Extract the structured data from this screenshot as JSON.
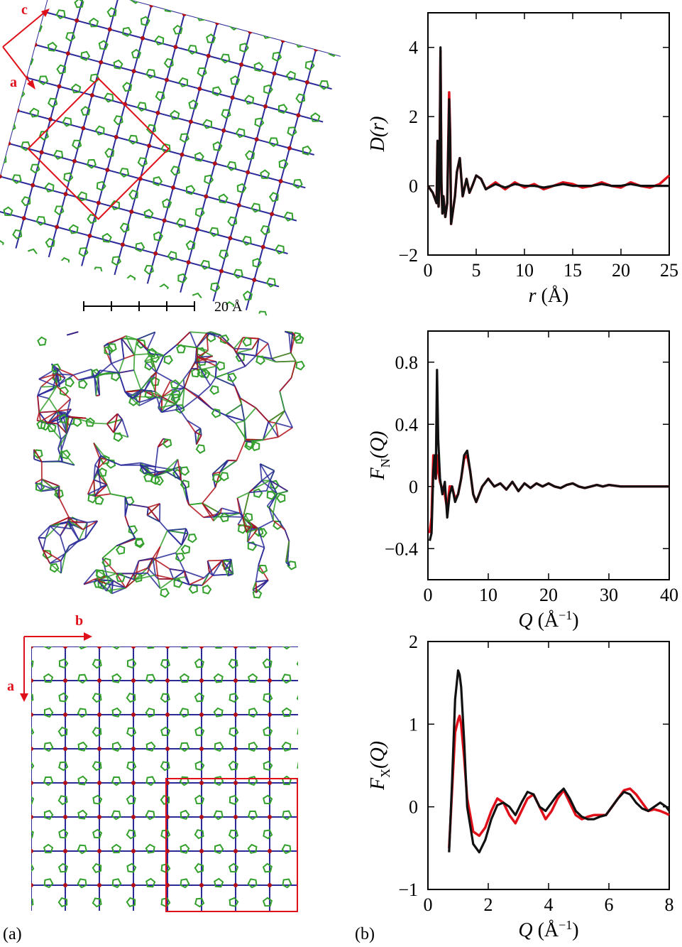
{
  "panel_labels": {
    "a": "(a)",
    "b": "(b)"
  },
  "structures": {
    "top": {
      "axis_labels": [
        "c",
        "a"
      ],
      "scale_bar_label": "20 Å"
    },
    "bottom": {
      "axis_labels": [
        "b",
        "a"
      ]
    }
  },
  "colors": {
    "experiment": "#e0101a",
    "model": "#111111",
    "bond_green": "#33a02c",
    "bond_blue": "#2a2a9a",
    "bond_red": "#b0101a"
  },
  "chart_data": [
    {
      "type": "line",
      "ylabel_main": "D(r)",
      "xlabel_main": "r (Å)",
      "xlim": [
        0,
        25
      ],
      "ylim": [
        -2,
        5
      ],
      "xticks": [
        0,
        5,
        10,
        15,
        20,
        25
      ],
      "yticks": [
        -2,
        0,
        2,
        4
      ],
      "xtick_labels": [
        "0",
        "5",
        "10",
        "15",
        "20",
        "25"
      ],
      "ytick_labels": [
        "−2",
        "0",
        "2",
        "4"
      ],
      "series": [
        {
          "color": "#e0101a",
          "x": [
            0,
            0.5,
            0.9,
            1.0,
            1.1,
            1.2,
            1.3,
            1.4,
            1.5,
            1.6,
            1.8,
            2.0,
            2.2,
            2.3,
            2.4,
            2.6,
            2.8,
            3.0,
            3.3,
            3.6,
            4.0,
            4.3,
            4.6,
            5.0,
            5.5,
            6.0,
            7.0,
            8.0,
            9.0,
            10.0,
            11.0,
            12.0,
            13.0,
            14.0,
            15.0,
            16.0,
            17.0,
            18.0,
            19.0,
            20.0,
            21.0,
            22.0,
            23.0,
            24.0,
            25.0
          ],
          "y": [
            0,
            -0.2,
            -0.5,
            1.3,
            -0.6,
            0.2,
            3.9,
            0.1,
            -0.8,
            -0.3,
            -0.9,
            -0.5,
            2.7,
            1.5,
            -1.1,
            -0.7,
            -0.3,
            0.4,
            0.8,
            -0.3,
            0.2,
            -0.2,
            0.0,
            0.3,
            0.2,
            -0.1,
            0.1,
            -0.1,
            0.1,
            -0.05,
            0.05,
            -0.1,
            0.0,
            0.1,
            0.05,
            -0.05,
            0.0,
            0.1,
            0.0,
            -0.05,
            0.1,
            0.0,
            -0.05,
            0.05,
            0.3
          ]
        },
        {
          "color": "#111111",
          "x": [
            0,
            0.5,
            0.9,
            1.0,
            1.1,
            1.2,
            1.3,
            1.4,
            1.5,
            1.6,
            1.8,
            2.0,
            2.2,
            2.3,
            2.4,
            2.6,
            2.8,
            3.0,
            3.3,
            3.6,
            4.0,
            4.3,
            4.6,
            5.0,
            5.5,
            6.0,
            7.0,
            8.0,
            9.0,
            10.0,
            11.0,
            12.0,
            13.0,
            14.0,
            15.0,
            16.0,
            17.0,
            18.0,
            19.0,
            20.0,
            21.0,
            22.0,
            23.0,
            24.0,
            25.0
          ],
          "y": [
            0,
            -0.2,
            -0.5,
            1.3,
            -0.6,
            0.2,
            4.0,
            0.1,
            -0.8,
            -0.3,
            -0.9,
            -0.5,
            2.5,
            1.4,
            -1.1,
            -0.7,
            -0.3,
            0.4,
            0.8,
            -0.3,
            0.2,
            -0.2,
            0.0,
            0.3,
            0.2,
            -0.1,
            0.05,
            -0.05,
            0.05,
            0.0,
            0.0,
            -0.05,
            0.0,
            0.05,
            0.0,
            0.0,
            0.0,
            0.05,
            0.0,
            0.0,
            0.05,
            0.0,
            0.0,
            0.0,
            0.0
          ]
        }
      ]
    },
    {
      "type": "line",
      "ylabel_main": "F",
      "ylabel_sub": "N",
      "ylabel_tail": "(Q)",
      "xlabel_main": "Q (Å",
      "xlabel_sup": "−1",
      "xlabel_tail": ")",
      "xlim": [
        0,
        40
      ],
      "ylim": [
        -0.6,
        1.0
      ],
      "xticks": [
        0,
        10,
        20,
        30,
        40
      ],
      "yticks": [
        -0.4,
        0,
        0.4,
        0.8
      ],
      "xtick_labels": [
        "0",
        "10",
        "20",
        "30",
        "40"
      ],
      "ytick_labels": [
        "−0.4",
        "0",
        "0.4",
        "0.8"
      ],
      "series": [
        {
          "color": "#e0101a",
          "x": [
            0.3,
            0.6,
            0.9,
            1.1,
            1.3,
            1.5,
            1.7,
            2.0,
            2.4,
            2.8,
            3.2,
            3.6,
            4.0,
            4.5,
            5.0,
            5.5,
            6.0,
            6.5,
            7.0,
            7.5,
            8.0,
            9.0,
            10.0,
            11.0,
            12.0,
            13.0,
            14.0,
            15.0,
            16.0,
            17.0,
            18.0,
            19.0,
            20.0,
            21.0,
            22.0,
            23.0,
            24.0,
            25.0,
            26.0,
            27.0,
            28.0,
            29.0,
            30.0,
            32.0,
            34.0,
            36.0,
            38.0,
            40.0
          ],
          "y": [
            -0.3,
            -0.2,
            0.2,
            0.15,
            0.05,
            0.2,
            0.1,
            0.03,
            -0.02,
            -0.05,
            -0.15,
            0.0,
            0.0,
            -0.08,
            -0.05,
            0.05,
            0.18,
            0.2,
            0.1,
            -0.05,
            -0.1,
            0.0,
            0.05,
            0.0,
            0.02,
            -0.02,
            0.03,
            -0.03,
            0.02,
            -0.01,
            0.02,
            0.0,
            0.02,
            0.0,
            -0.01,
            0.01,
            0.02,
            0.0,
            -0.01,
            0.0,
            0.01,
            0.0,
            0.01,
            0.0,
            0.0,
            0.0,
            0.0,
            0.0
          ]
        },
        {
          "color": "#111111",
          "x": [
            0.3,
            0.6,
            0.9,
            1.1,
            1.3,
            1.5,
            1.7,
            2.0,
            2.4,
            2.8,
            3.2,
            3.6,
            4.0,
            4.5,
            5.0,
            5.5,
            6.0,
            6.5,
            7.0,
            7.5,
            8.0,
            9.0,
            10.0,
            11.0,
            12.0,
            13.0,
            14.0,
            15.0,
            16.0,
            17.0,
            18.0,
            19.0,
            20.0,
            21.0,
            22.0,
            23.0,
            24.0,
            25.0,
            26.0,
            27.0,
            28.0,
            29.0,
            30.0,
            32.0,
            34.0,
            36.0,
            38.0,
            40.0
          ],
          "y": [
            -0.35,
            -0.3,
            0.1,
            0.2,
            0.05,
            0.75,
            0.3,
            0.05,
            -0.05,
            0.03,
            -0.2,
            -0.05,
            0.0,
            -0.1,
            -0.05,
            0.05,
            0.2,
            0.23,
            0.1,
            -0.05,
            -0.1,
            0.0,
            0.05,
            0.0,
            0.02,
            -0.02,
            0.03,
            -0.03,
            0.02,
            -0.01,
            0.02,
            0.0,
            0.02,
            0.0,
            -0.01,
            0.01,
            0.02,
            0.0,
            -0.01,
            0.0,
            0.01,
            0.0,
            0.01,
            0.0,
            0.0,
            0.0,
            0.0,
            0.0
          ]
        }
      ]
    },
    {
      "type": "line",
      "ylabel_main": "F",
      "ylabel_sub": "X",
      "ylabel_tail": "(Q)",
      "xlabel_main": "Q (Å",
      "xlabel_sup": "−1",
      "xlabel_tail": ")",
      "xlim": [
        0,
        8
      ],
      "ylim": [
        -1,
        2
      ],
      "xticks": [
        0,
        2,
        4,
        6,
        8
      ],
      "yticks": [
        -1,
        0,
        1,
        2
      ],
      "xtick_labels": [
        "0",
        "2",
        "4",
        "6",
        "8"
      ],
      "ytick_labels": [
        "−1",
        "0",
        "1",
        "2"
      ],
      "series": [
        {
          "color": "#e0101a",
          "x": [
            0.7,
            0.8,
            0.9,
            1.0,
            1.05,
            1.1,
            1.2,
            1.3,
            1.5,
            1.7,
            1.9,
            2.1,
            2.3,
            2.5,
            2.7,
            2.9,
            3.1,
            3.3,
            3.5,
            3.7,
            3.9,
            4.1,
            4.3,
            4.5,
            4.7,
            4.9,
            5.1,
            5.3,
            5.5,
            5.7,
            5.9,
            6.1,
            6.3,
            6.5,
            6.7,
            6.9,
            7.1,
            7.3,
            7.5,
            7.7,
            7.9,
            8.0
          ],
          "y": [
            -0.5,
            0.2,
            0.9,
            1.05,
            1.1,
            1.0,
            0.6,
            0.1,
            -0.3,
            -0.35,
            -0.25,
            -0.05,
            0.1,
            0.05,
            -0.1,
            -0.2,
            -0.05,
            0.1,
            0.15,
            0.0,
            -0.15,
            -0.05,
            0.1,
            0.2,
            0.05,
            -0.1,
            -0.15,
            -0.12,
            -0.1,
            -0.1,
            -0.1,
            0.0,
            0.1,
            0.2,
            0.22,
            0.15,
            0.05,
            -0.05,
            -0.03,
            -0.05,
            -0.08,
            -0.1
          ]
        },
        {
          "color": "#111111",
          "x": [
            0.7,
            0.8,
            0.9,
            1.0,
            1.05,
            1.1,
            1.2,
            1.3,
            1.5,
            1.7,
            1.9,
            2.1,
            2.3,
            2.5,
            2.7,
            2.9,
            3.1,
            3.3,
            3.5,
            3.7,
            3.9,
            4.1,
            4.3,
            4.5,
            4.7,
            4.9,
            5.1,
            5.3,
            5.5,
            5.7,
            5.9,
            6.1,
            6.3,
            6.5,
            6.7,
            6.9,
            7.1,
            7.3,
            7.5,
            7.7,
            7.9,
            8.0
          ],
          "y": [
            -0.55,
            0.3,
            1.3,
            1.65,
            1.6,
            1.45,
            0.8,
            0.0,
            -0.45,
            -0.55,
            -0.4,
            -0.15,
            0.02,
            0.05,
            0.0,
            -0.1,
            0.05,
            0.18,
            0.15,
            0.0,
            -0.05,
            0.05,
            0.15,
            0.22,
            0.1,
            -0.05,
            -0.12,
            -0.15,
            -0.15,
            -0.12,
            -0.1,
            0.0,
            0.1,
            0.18,
            0.15,
            0.05,
            -0.02,
            -0.05,
            0.0,
            0.05,
            0.0,
            -0.05
          ]
        }
      ]
    }
  ]
}
